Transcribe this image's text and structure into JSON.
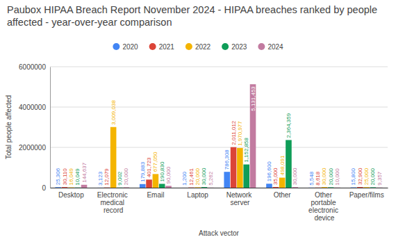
{
  "chart_data": {
    "type": "bar",
    "title": "Paubox HIPAA Breach Report November 2024 - HIPAA breaches ranked by people affected - year-over-year comparison",
    "x_label": "Attack vector",
    "y_label": "Total people affected",
    "categories": [
      "Desktop",
      "Electronic medical record",
      "Email",
      "Laptop",
      "Network server",
      "Other",
      "Other portable electronic device",
      "Paper/films"
    ],
    "series": [
      {
        "name": "2020",
        "color": "#4285f4",
        "values": [
          25306,
          3123,
          179883,
          1200,
          786308,
          196600,
          5548,
          15800
        ],
        "value_labels": [
          "25,306",
          "3,123",
          "179,883",
          "1,200",
          "786,308",
          "196,600",
          "5,548",
          "15,800"
        ]
      },
      {
        "name": "2021",
        "color": "#db4437",
        "values": [
          30110,
          12079,
          401723,
          12461,
          2011012,
          35000,
          8618,
          32900
        ],
        "value_labels": [
          "30,110",
          "12,079",
          "401,723",
          "12,461",
          "2,011,012",
          "35,000",
          "8,618",
          "32,900"
        ]
      },
      {
        "name": "2022",
        "color": "#f4b400",
        "values": [
          16049,
          3009038,
          677050,
          20000,
          1970977,
          498091,
          30000,
          25000
        ],
        "value_labels": [
          "16,049",
          "3,009,038",
          "677,050",
          "20,000",
          "1,970,977",
          "498,091",
          "30,000",
          "25,000"
        ]
      },
      {
        "name": "2023",
        "color": "#0f9d58",
        "values": [
          10049,
          9002,
          190830,
          30000,
          1152858,
          2364359,
          20000,
          20000
        ],
        "value_labels": [
          "10,049",
          "9,002",
          "190,830",
          "30,000",
          "1,152,858",
          "2,364,359",
          "20,000",
          "20,000"
        ]
      },
      {
        "name": "2024",
        "color": "#c27ba0",
        "values": [
          144637,
          20000,
          90000,
          5262,
          5131453,
          30000,
          10000,
          9357
        ],
        "value_labels": [
          "144,637",
          "20,000",
          "90,000",
          "5,262",
          "5,131,453",
          "30,000",
          "10,000",
          "9,357"
        ]
      }
    ],
    "ylim": [
      0,
      6000000
    ],
    "yticks": [
      0,
      2000000,
      4000000,
      6000000
    ],
    "grid": true,
    "legend": "top",
    "data_labels": true
  }
}
